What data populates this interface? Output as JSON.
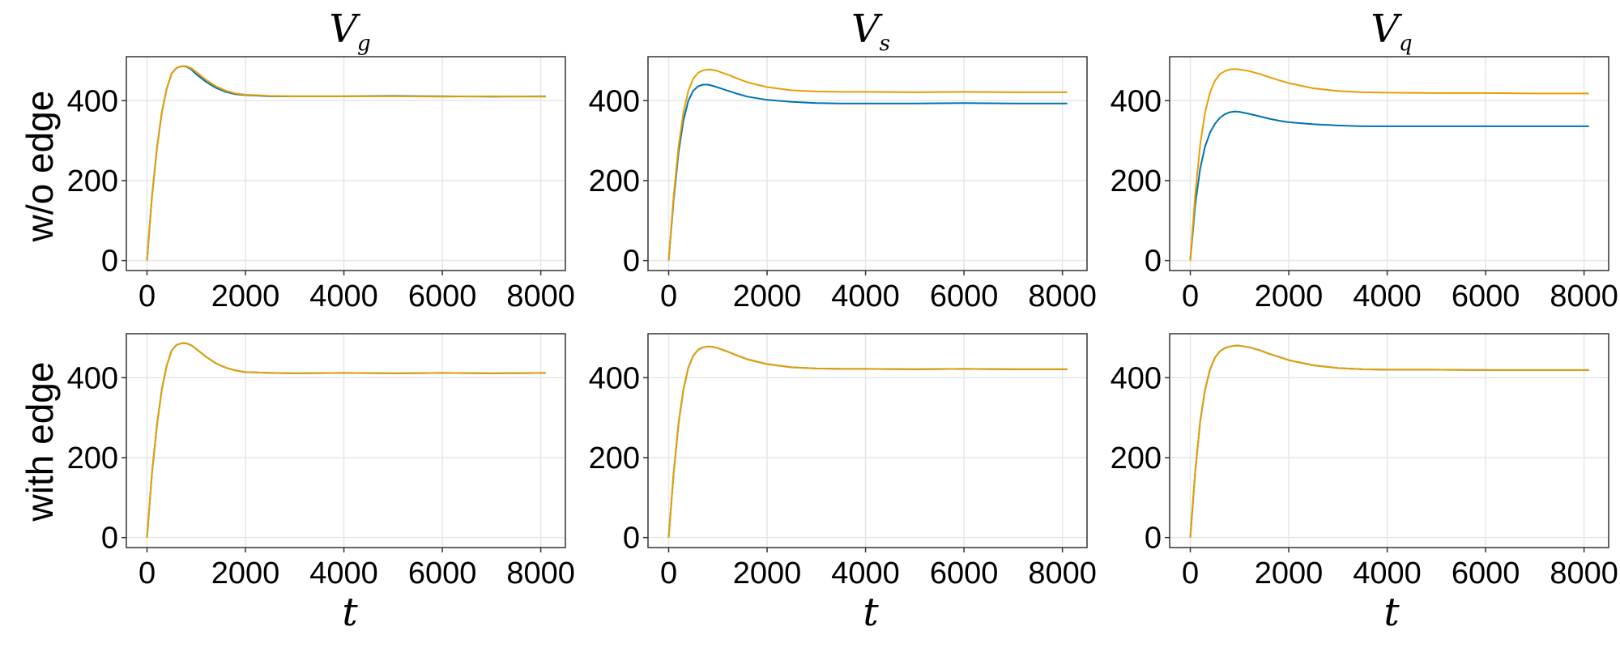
{
  "figure": {
    "row_labels": [
      "w/o edge",
      "with edge"
    ],
    "col_titles": [
      {
        "main": "V",
        "sub": "g"
      },
      {
        "main": "V",
        "sub": "s"
      },
      {
        "main": "V",
        "sub": "q"
      }
    ],
    "xlabel": "t"
  },
  "chart_data": [
    {
      "type": "line",
      "row": 0,
      "col": 0,
      "title": "V_g",
      "xlabel": "",
      "ylabel": "w/o edge",
      "xlim": [
        -420,
        8500
      ],
      "ylim": [
        -25,
        510
      ],
      "xticks": [
        0,
        2000,
        4000,
        6000,
        8000
      ],
      "yticks": [
        0,
        200,
        400
      ],
      "grid": true,
      "series": [
        {
          "color": "#0072b2",
          "x": [
            0,
            100,
            200,
            300,
            400,
            500,
            600,
            700,
            800,
            900,
            1000,
            1200,
            1400,
            1600,
            1800,
            2000,
            2500,
            3000,
            4000,
            5000,
            6000,
            7000,
            8100
          ],
          "y": [
            0,
            160,
            280,
            370,
            430,
            468,
            482,
            486,
            485,
            478,
            466,
            447,
            432,
            422,
            416,
            414,
            411,
            411,
            411,
            412,
            411,
            410,
            411
          ]
        },
        {
          "color": "#e69f00",
          "x": [
            0,
            100,
            200,
            300,
            400,
            500,
            600,
            700,
            800,
            900,
            1000,
            1200,
            1400,
            1600,
            1800,
            2000,
            2500,
            3000,
            4000,
            5000,
            6000,
            7000,
            8100
          ],
          "y": [
            0,
            160,
            280,
            370,
            430,
            468,
            482,
            486,
            486,
            481,
            472,
            452,
            436,
            425,
            418,
            415,
            412,
            411,
            411,
            411,
            410,
            411,
            410
          ]
        }
      ]
    },
    {
      "type": "line",
      "row": 0,
      "col": 1,
      "title": "V_s",
      "xlabel": "",
      "ylabel": "",
      "xlim": [
        -420,
        8500
      ],
      "ylim": [
        -25,
        510
      ],
      "xticks": [
        0,
        2000,
        4000,
        6000,
        8000
      ],
      "yticks": [
        0,
        200,
        400
      ],
      "grid": true,
      "series": [
        {
          "color": "#0072b2",
          "x": [
            0,
            100,
            200,
            300,
            400,
            500,
            600,
            700,
            800,
            900,
            1000,
            1200,
            1400,
            1600,
            2000,
            2500,
            3000,
            3500,
            4000,
            5000,
            6000,
            7000,
            8100
          ],
          "y": [
            0,
            150,
            270,
            350,
            400,
            425,
            436,
            440,
            440,
            437,
            433,
            425,
            417,
            410,
            402,
            397,
            394,
            393,
            393,
            393,
            394,
            393,
            393
          ]
        },
        {
          "color": "#e69f00",
          "x": [
            0,
            100,
            200,
            300,
            400,
            500,
            600,
            700,
            800,
            900,
            1000,
            1200,
            1400,
            1600,
            2000,
            2500,
            3000,
            3500,
            4000,
            5000,
            6000,
            7000,
            8100
          ],
          "y": [
            0,
            160,
            285,
            370,
            425,
            455,
            470,
            476,
            478,
            477,
            474,
            465,
            455,
            446,
            434,
            426,
            423,
            422,
            422,
            421,
            422,
            421,
            421
          ]
        }
      ]
    },
    {
      "type": "line",
      "row": 0,
      "col": 2,
      "title": "V_q",
      "xlabel": "",
      "ylabel": "",
      "xlim": [
        -420,
        8500
      ],
      "ylim": [
        -25,
        510
      ],
      "xticks": [
        0,
        2000,
        4000,
        6000,
        8000
      ],
      "yticks": [
        0,
        200,
        400
      ],
      "grid": true,
      "series": [
        {
          "color": "#0072b2",
          "x": [
            0,
            100,
            200,
            300,
            400,
            500,
            600,
            700,
            800,
            900,
            1000,
            1200,
            1400,
            1600,
            1800,
            2000,
            2500,
            3000,
            3500,
            4000,
            5000,
            6000,
            7000,
            8100
          ],
          "y": [
            0,
            140,
            230,
            285,
            320,
            342,
            357,
            366,
            371,
            373,
            372,
            367,
            361,
            355,
            350,
            346,
            341,
            338,
            336,
            336,
            336,
            336,
            336,
            336
          ]
        },
        {
          "color": "#e69f00",
          "x": [
            0,
            100,
            200,
            300,
            400,
            500,
            600,
            700,
            800,
            900,
            1000,
            1200,
            1400,
            1600,
            1800,
            2000,
            2500,
            3000,
            3500,
            4000,
            5000,
            6000,
            7000,
            8100
          ],
          "y": [
            0,
            165,
            290,
            370,
            420,
            450,
            466,
            474,
            478,
            479,
            478,
            474,
            467,
            459,
            451,
            444,
            431,
            424,
            421,
            420,
            419,
            419,
            418,
            418
          ]
        }
      ]
    },
    {
      "type": "line",
      "row": 1,
      "col": 0,
      "title": "",
      "xlabel": "t",
      "ylabel": "with edge",
      "xlim": [
        -420,
        8500
      ],
      "ylim": [
        -25,
        510
      ],
      "xticks": [
        0,
        2000,
        4000,
        6000,
        8000
      ],
      "yticks": [
        0,
        200,
        400
      ],
      "grid": true,
      "series": [
        {
          "color": "#0072b2",
          "x": [
            0,
            100,
            200,
            300,
            400,
            500,
            600,
            700,
            800,
            900,
            1000,
            1200,
            1400,
            1600,
            1800,
            2000,
            2500,
            3000,
            4000,
            5000,
            6000,
            7000,
            8100
          ],
          "y": [
            0,
            160,
            280,
            370,
            430,
            468,
            482,
            486,
            486,
            481,
            472,
            452,
            436,
            425,
            418,
            414,
            412,
            411,
            412,
            411,
            412,
            411,
            412
          ]
        },
        {
          "color": "#e69f00",
          "x": [
            0,
            100,
            200,
            300,
            400,
            500,
            600,
            700,
            800,
            900,
            1000,
            1200,
            1400,
            1600,
            1800,
            2000,
            2500,
            3000,
            4000,
            5000,
            6000,
            7000,
            8100
          ],
          "y": [
            0,
            160,
            280,
            370,
            430,
            468,
            482,
            486,
            486,
            481,
            472,
            452,
            436,
            425,
            418,
            414,
            412,
            411,
            412,
            411,
            412,
            411,
            412
          ]
        }
      ]
    },
    {
      "type": "line",
      "row": 1,
      "col": 1,
      "title": "",
      "xlabel": "t",
      "ylabel": "",
      "xlim": [
        -420,
        8500
      ],
      "ylim": [
        -25,
        510
      ],
      "xticks": [
        0,
        2000,
        4000,
        6000,
        8000
      ],
      "yticks": [
        0,
        200,
        400
      ],
      "grid": true,
      "series": [
        {
          "color": "#0072b2",
          "x": [
            0,
            100,
            200,
            300,
            400,
            500,
            600,
            700,
            800,
            900,
            1000,
            1200,
            1400,
            1600,
            2000,
            2500,
            3000,
            3500,
            4000,
            5000,
            6000,
            7000,
            8100
          ],
          "y": [
            0,
            160,
            285,
            370,
            425,
            455,
            470,
            476,
            478,
            477,
            474,
            465,
            455,
            446,
            434,
            426,
            423,
            422,
            422,
            421,
            422,
            421,
            421
          ]
        },
        {
          "color": "#e69f00",
          "x": [
            0,
            100,
            200,
            300,
            400,
            500,
            600,
            700,
            800,
            900,
            1000,
            1200,
            1400,
            1600,
            2000,
            2500,
            3000,
            3500,
            4000,
            5000,
            6000,
            7000,
            8100
          ],
          "y": [
            0,
            160,
            285,
            370,
            425,
            455,
            470,
            476,
            478,
            477,
            474,
            465,
            455,
            446,
            434,
            426,
            423,
            422,
            422,
            421,
            422,
            421,
            421
          ]
        }
      ]
    },
    {
      "type": "line",
      "row": 1,
      "col": 2,
      "title": "",
      "xlabel": "t",
      "ylabel": "",
      "xlim": [
        -420,
        8500
      ],
      "ylim": [
        -25,
        510
      ],
      "xticks": [
        0,
        2000,
        4000,
        6000,
        8000
      ],
      "yticks": [
        0,
        200,
        400
      ],
      "grid": true,
      "series": [
        {
          "color": "#0072b2",
          "x": [
            0,
            100,
            200,
            300,
            400,
            500,
            600,
            700,
            800,
            900,
            1000,
            1200,
            1400,
            1600,
            1800,
            2000,
            2500,
            3000,
            3500,
            4000,
            5000,
            6000,
            7000,
            8100
          ],
          "y": [
            0,
            165,
            290,
            370,
            420,
            450,
            466,
            474,
            478,
            480,
            480,
            476,
            469,
            460,
            452,
            444,
            431,
            424,
            421,
            420,
            420,
            419,
            419,
            419
          ]
        },
        {
          "color": "#e69f00",
          "x": [
            0,
            100,
            200,
            300,
            400,
            500,
            600,
            700,
            800,
            900,
            1000,
            1200,
            1400,
            1600,
            1800,
            2000,
            2500,
            3000,
            3500,
            4000,
            5000,
            6000,
            7000,
            8100
          ],
          "y": [
            0,
            165,
            290,
            370,
            420,
            450,
            466,
            474,
            478,
            480,
            480,
            476,
            469,
            460,
            452,
            444,
            431,
            424,
            421,
            420,
            420,
            419,
            419,
            419
          ]
        }
      ]
    }
  ]
}
